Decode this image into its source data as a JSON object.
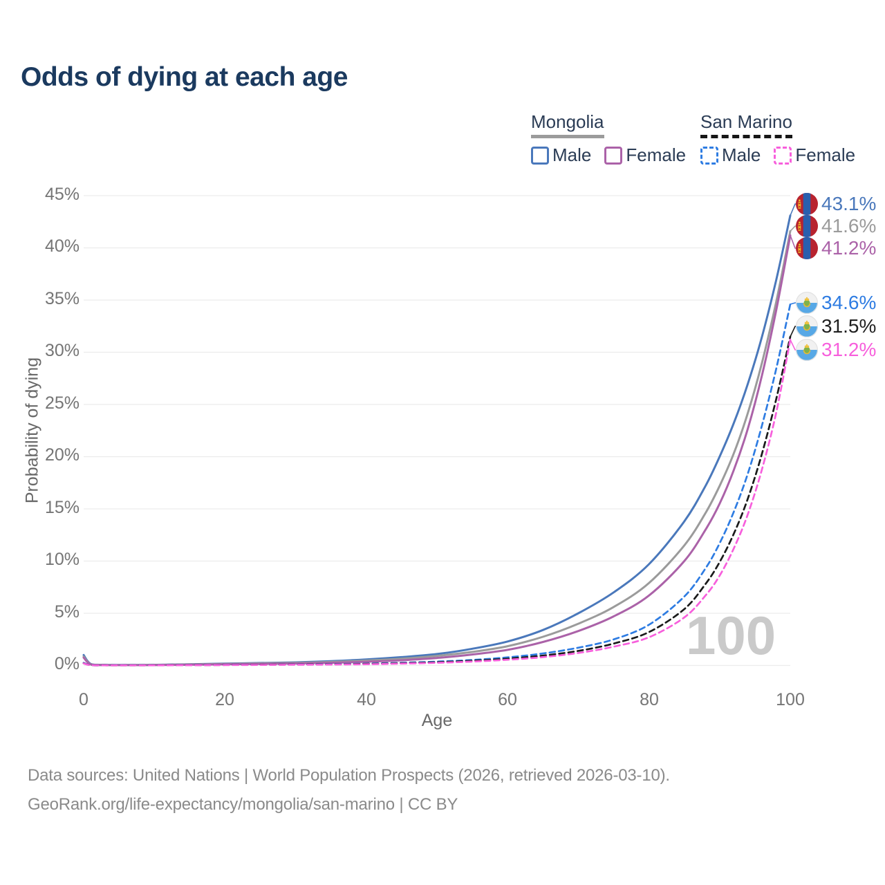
{
  "title": "Odds of dying at each age",
  "legend": {
    "mongolia": {
      "label": "Mongolia",
      "male_label": "Male",
      "female_label": "Female"
    },
    "san_marino": {
      "label": "San Marino",
      "male_label": "Male",
      "female_label": "Female"
    }
  },
  "axes": {
    "x_title": "Age",
    "y_title": "Probability of dying"
  },
  "watermark": "100",
  "footer": {
    "line1": "Data sources: United Nations | World Population Prospects (2026, retrieved 2026-03-10).",
    "line2": "GeoRank.org/life-expectancy/mongolia/san-marino | CC BY"
  },
  "colors": {
    "title_text": "#1b3a5f",
    "legend_text": "#2b3c55",
    "axis_text": "#757575",
    "gridline": "#ececec",
    "watermark": "#cacaca",
    "mongolia_male": "#4a78bb",
    "mongolia_both": "#9b9b9b",
    "mongolia_female": "#ab62a8",
    "san_marino_male": "#2e7ce2",
    "san_marino_both": "#1a1a1a",
    "san_marino_female": "#f75fdc"
  },
  "chart_data": {
    "type": "line",
    "title": "Odds of dying at each age",
    "xlabel": "Age",
    "ylabel": "Probability of dying",
    "xlim": [
      0,
      100
    ],
    "ylim_pct": [
      0,
      45
    ],
    "grid": "horizontal",
    "legend_position": "top-right",
    "xtick_labels": [
      "0",
      "20",
      "40",
      "60",
      "80",
      "100"
    ],
    "xtick_values": [
      0,
      20,
      40,
      60,
      80,
      100
    ],
    "ytick_labels": [
      "45%",
      "40%",
      "35%",
      "30%",
      "25%",
      "20%",
      "15%",
      "10%",
      "5%",
      "0%"
    ],
    "ytick_values": [
      45,
      40,
      35,
      30,
      25,
      20,
      15,
      10,
      5,
      0
    ],
    "x_ages": [
      0,
      1,
      3,
      5,
      10,
      15,
      20,
      25,
      30,
      35,
      40,
      45,
      50,
      55,
      60,
      65,
      70,
      75,
      80,
      85,
      88,
      90,
      92,
      94,
      96,
      98,
      100
    ],
    "series": [
      {
        "name": "Mongolia Male",
        "country": "Mongolia",
        "sex": "male",
        "style": "solid",
        "color": "#4a78bb",
        "end_label": "43.1%",
        "values_pct": [
          1.0,
          0.15,
          0.06,
          0.05,
          0.06,
          0.12,
          0.18,
          0.24,
          0.3,
          0.42,
          0.58,
          0.8,
          1.1,
          1.6,
          2.3,
          3.4,
          5.0,
          7.0,
          9.7,
          13.8,
          17.2,
          20.0,
          23.2,
          27.0,
          31.5,
          36.9,
          43.1
        ]
      },
      {
        "name": "Mongolia Both sexes",
        "country": "Mongolia",
        "sex": "both",
        "style": "solid",
        "color": "#9b9b9b",
        "end_label": "41.6%",
        "values_pct": [
          0.85,
          0.12,
          0.05,
          0.04,
          0.05,
          0.1,
          0.15,
          0.2,
          0.25,
          0.34,
          0.47,
          0.65,
          0.92,
          1.3,
          1.85,
          2.75,
          4.0,
          5.6,
          7.9,
          11.5,
          14.6,
          17.2,
          20.3,
          24.2,
          29.0,
          34.8,
          41.6
        ]
      },
      {
        "name": "Mongolia Female",
        "country": "Mongolia",
        "sex": "female",
        "style": "solid",
        "color": "#ab62a8",
        "end_label": "41.2%",
        "values_pct": [
          0.75,
          0.1,
          0.04,
          0.03,
          0.04,
          0.07,
          0.11,
          0.15,
          0.19,
          0.26,
          0.36,
          0.5,
          0.72,
          1.05,
          1.5,
          2.25,
          3.3,
          4.7,
          6.7,
          10.0,
          13.0,
          15.5,
          18.7,
          22.7,
          27.8,
          34.0,
          41.2
        ]
      },
      {
        "name": "San Marino Male",
        "country": "San Marino",
        "sex": "male",
        "style": "dashed",
        "color": "#2e7ce2",
        "end_label": "34.6%",
        "values_pct": [
          0.25,
          0.04,
          0.02,
          0.02,
          0.02,
          0.04,
          0.06,
          0.08,
          0.1,
          0.13,
          0.18,
          0.26,
          0.37,
          0.53,
          0.78,
          1.15,
          1.7,
          2.5,
          3.9,
          6.6,
          9.3,
          11.7,
          14.7,
          18.4,
          23.0,
          28.4,
          34.6
        ]
      },
      {
        "name": "San Marino Both sexes",
        "country": "San Marino",
        "sex": "both",
        "style": "dashed",
        "color": "#1a1a1a",
        "end_label": "31.5%",
        "values_pct": [
          0.22,
          0.035,
          0.02,
          0.015,
          0.02,
          0.03,
          0.05,
          0.07,
          0.09,
          0.11,
          0.15,
          0.22,
          0.31,
          0.45,
          0.65,
          0.95,
          1.4,
          2.1,
          3.2,
          5.4,
          7.8,
          9.9,
          12.6,
          16.0,
          20.3,
          25.5,
          31.5
        ]
      },
      {
        "name": "San Marino Female",
        "country": "San Marino",
        "sex": "female",
        "style": "dashed",
        "color": "#f75fdc",
        "end_label": "31.2%",
        "values_pct": [
          0.2,
          0.03,
          0.015,
          0.01,
          0.015,
          0.025,
          0.04,
          0.055,
          0.07,
          0.09,
          0.12,
          0.18,
          0.26,
          0.38,
          0.55,
          0.8,
          1.2,
          1.8,
          2.7,
          4.6,
          6.7,
          8.6,
          11.2,
          14.5,
          18.8,
          24.2,
          31.2
        ]
      }
    ]
  }
}
